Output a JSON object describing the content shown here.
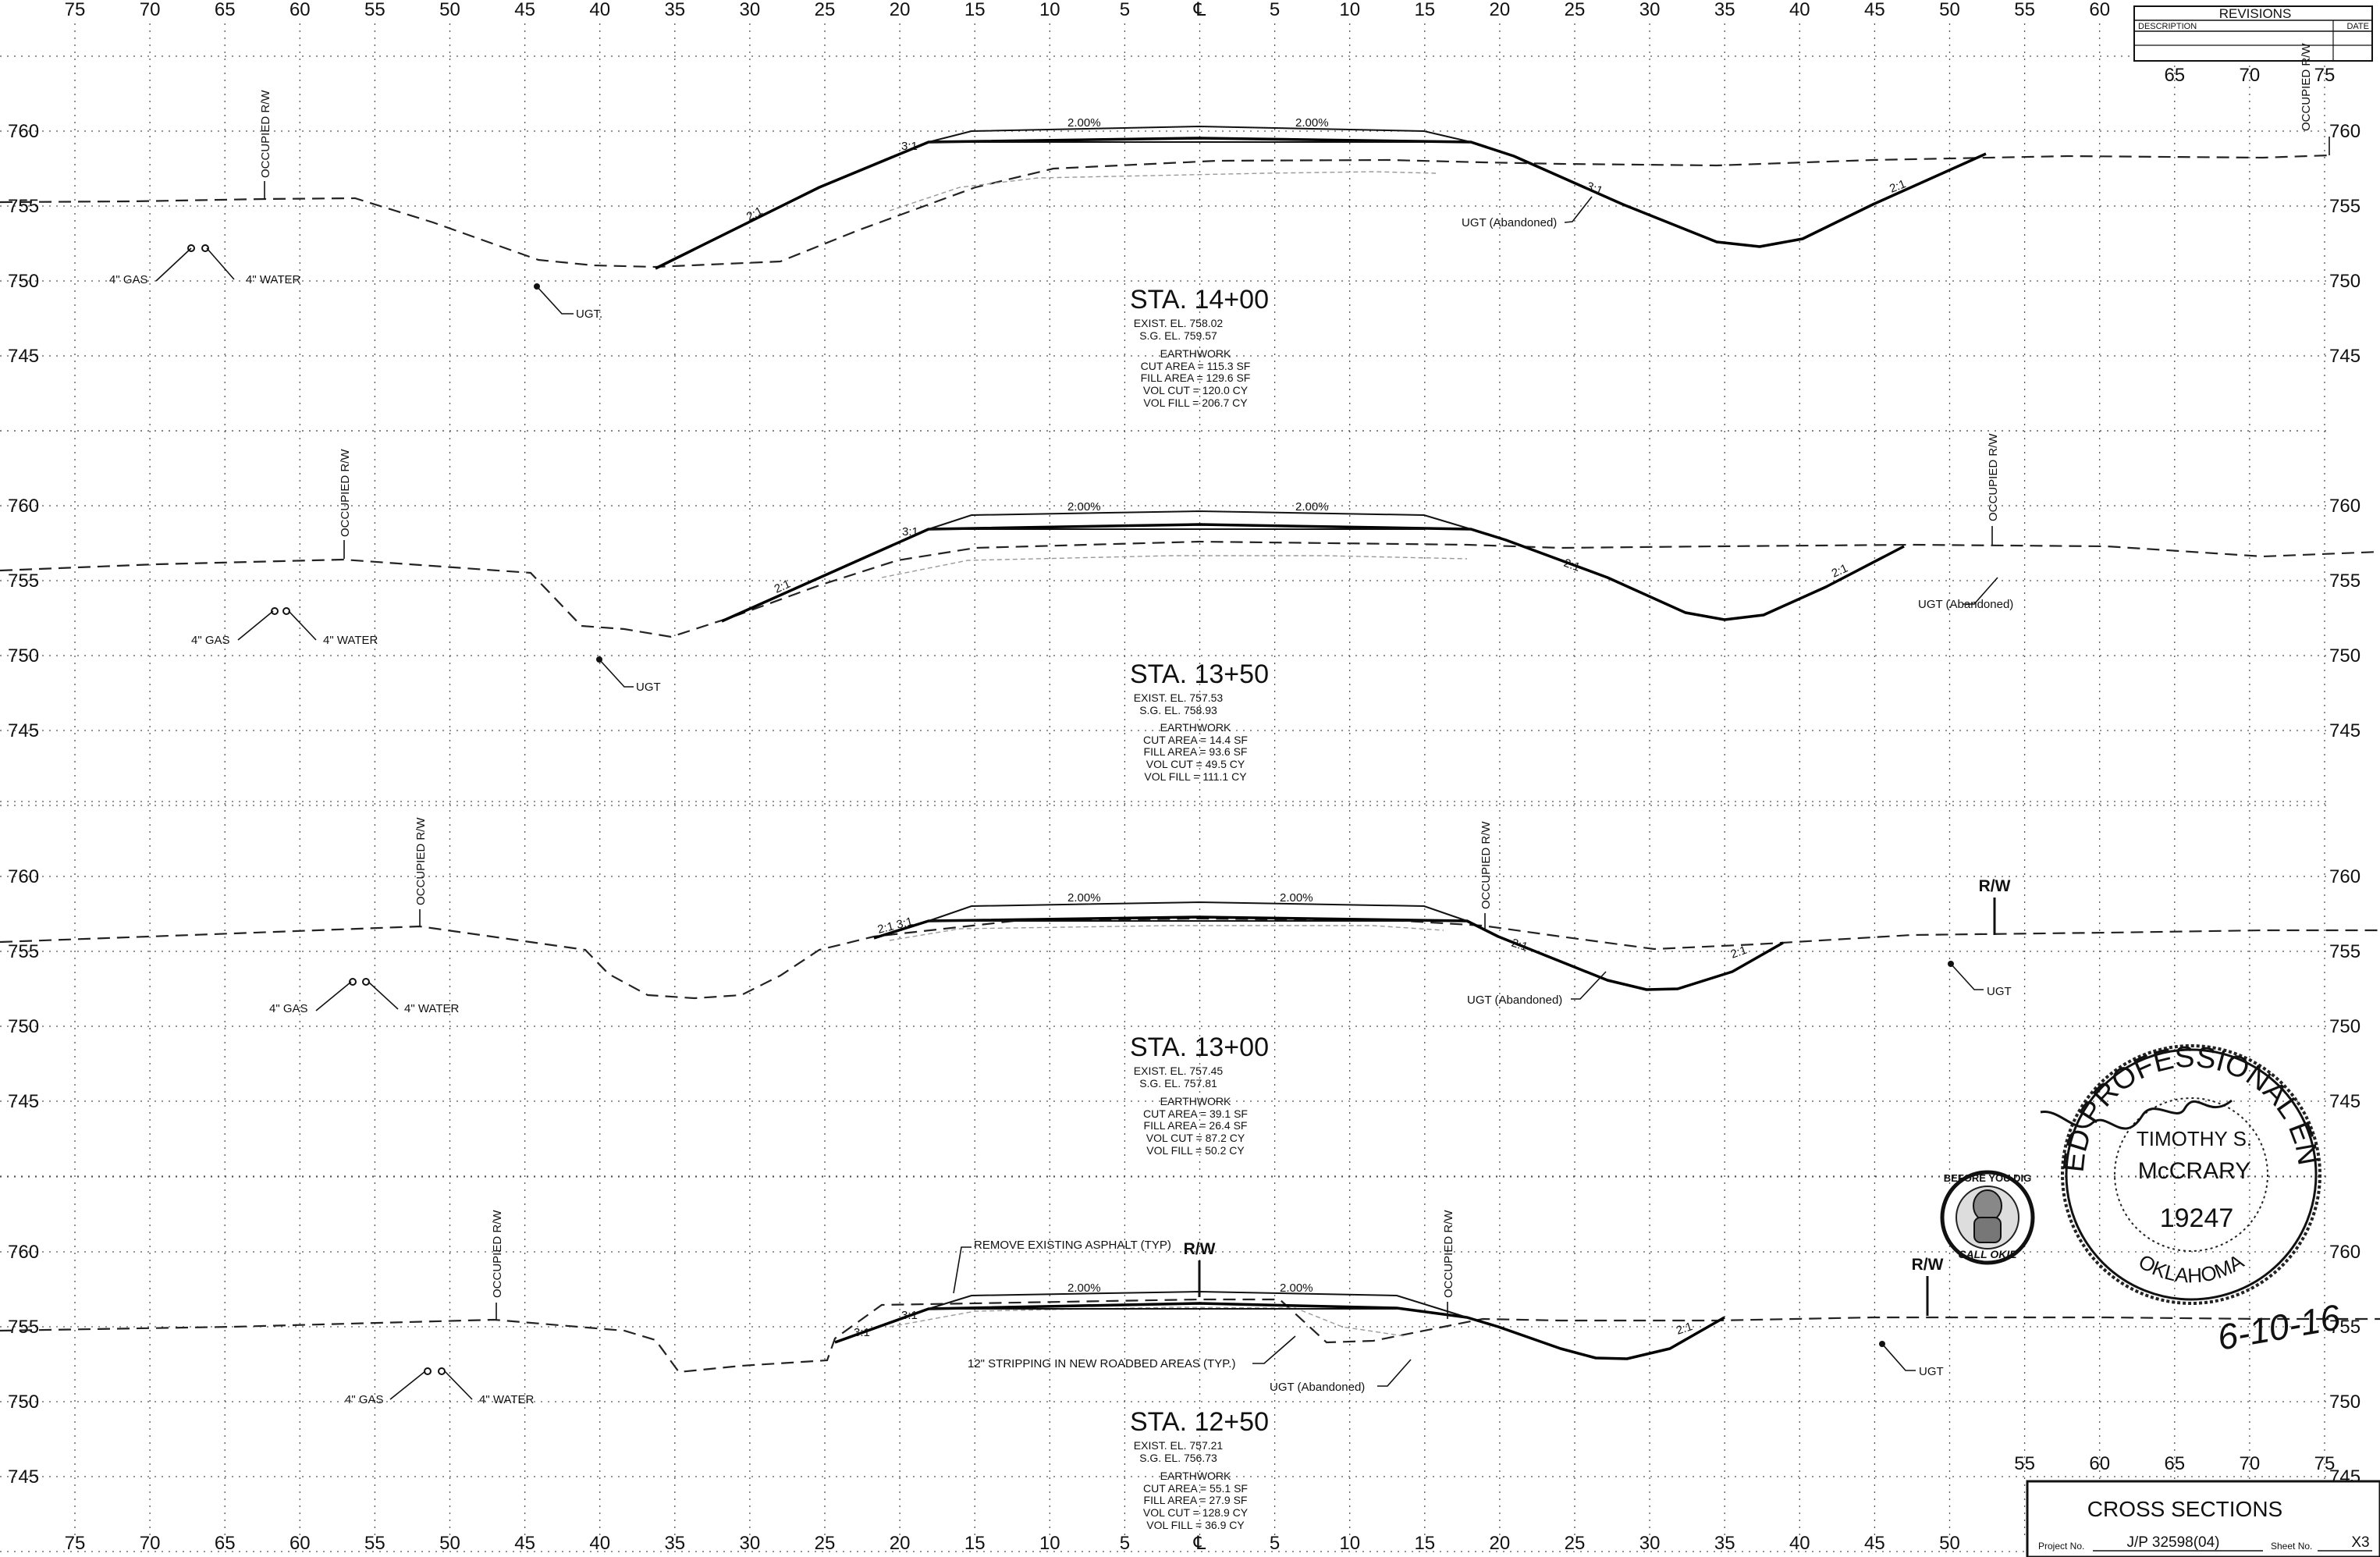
{
  "axis": {
    "top_offsets": [
      "75",
      "70",
      "65",
      "60",
      "55",
      "50",
      "45",
      "40",
      "35",
      "30",
      "25",
      "20",
      "15",
      "10",
      "5",
      "℄",
      "5",
      "10",
      "15",
      "20",
      "25",
      "30",
      "35",
      "40",
      "45",
      "50",
      "55",
      "60"
    ],
    "bottom_offsets": [
      "75",
      "70",
      "65",
      "60",
      "55",
      "50",
      "45",
      "40",
      "35",
      "30",
      "25",
      "20",
      "15",
      "10",
      "5",
      "℄",
      "5",
      "10",
      "15",
      "20",
      "25",
      "30",
      "35",
      "40",
      "45",
      "50"
    ],
    "bottom_right_offsets": [
      "55",
      "60",
      "65",
      "70",
      "75"
    ],
    "revisions_offsets": [
      "65",
      "70",
      "75"
    ],
    "elevations": [
      "760",
      "755",
      "750",
      "745"
    ]
  },
  "revisions": {
    "title": "REVISIONS",
    "description_label": "DESCRIPTION",
    "date_label": "DATE"
  },
  "labels": {
    "occupied_rw": "OCCUPIED R/W",
    "rw": "R/W",
    "gas": "4\" GAS",
    "water": "4\" WATER",
    "ugt": "UGT",
    "ugt_dot": "UGT.",
    "ugt_abandoned": "UGT (Abandoned)",
    "slope_2to1": "2:1",
    "slope_3to1": "3:1",
    "slope_2to1_3to1": "2:1  3:1",
    "cross_slope": "2.00%",
    "remove_asphalt": "REMOVE EXISTING ASPHALT (TYP)",
    "stripping": "12\" STRIPPING IN NEW ROADBED AREAS (TYP.)"
  },
  "sections": [
    {
      "station": "STA. 14+00",
      "exist_el": "EXIST. EL. 758.02",
      "sg_el": "S.G. EL. 759.57",
      "earthwork_title": "EARTHWORK",
      "cut_area": "CUT AREA = 115.3 SF",
      "fill_area": "FILL AREA = 129.6 SF",
      "vol_cut": "VOL CUT = 120.0 CY",
      "vol_fill": "VOL FILL = 206.7 CY"
    },
    {
      "station": "STA. 13+50",
      "exist_el": "EXIST. EL. 757.53",
      "sg_el": "S.G. EL. 758.93",
      "earthwork_title": "EARTHWORK",
      "cut_area": "CUT AREA = 14.4 SF",
      "fill_area": "FILL AREA = 93.6 SF",
      "vol_cut": "VOL CUT = 49.5 CY",
      "vol_fill": "VOL FILL = 111.1 CY"
    },
    {
      "station": "STA. 13+00",
      "exist_el": "EXIST. EL. 757.45",
      "sg_el": "S.G. EL. 757.81",
      "earthwork_title": "EARTHWORK",
      "cut_area": "CUT AREA = 39.1 SF",
      "fill_area": "FILL AREA = 26.4 SF",
      "vol_cut": "VOL CUT = 87.2 CY",
      "vol_fill": "VOL FILL = 50.2 CY"
    },
    {
      "station": "STA. 12+50",
      "exist_el": "EXIST. EL. 757.21",
      "sg_el": "S.G. EL. 756.73",
      "earthwork_title": "EARTHWORK",
      "cut_area": "CUT AREA = 55.1 SF",
      "fill_area": "FILL AREA = 27.9 SF",
      "vol_cut": "VOL CUT = 128.9 CY",
      "vol_fill": "VOL FILL = 36.9 CY"
    }
  ],
  "stamp": {
    "ring_text": "LICENSED PROFESSIONAL ENGINEER",
    "state": "OKLAHOMA",
    "name_line1": "TIMOTHY S.",
    "name_line2": "McCRARY",
    "number": "19247",
    "date": "6-10-16"
  },
  "okie": {
    "top": "BEFORE YOU DIG",
    "bottom": "CALL OKIE"
  },
  "title_block": {
    "title": "CROSS SECTIONS",
    "project_label": "Project No.",
    "project_no": "J/P 32598(04)",
    "sheet_label": "Sheet No.",
    "sheet_no": "X3"
  }
}
